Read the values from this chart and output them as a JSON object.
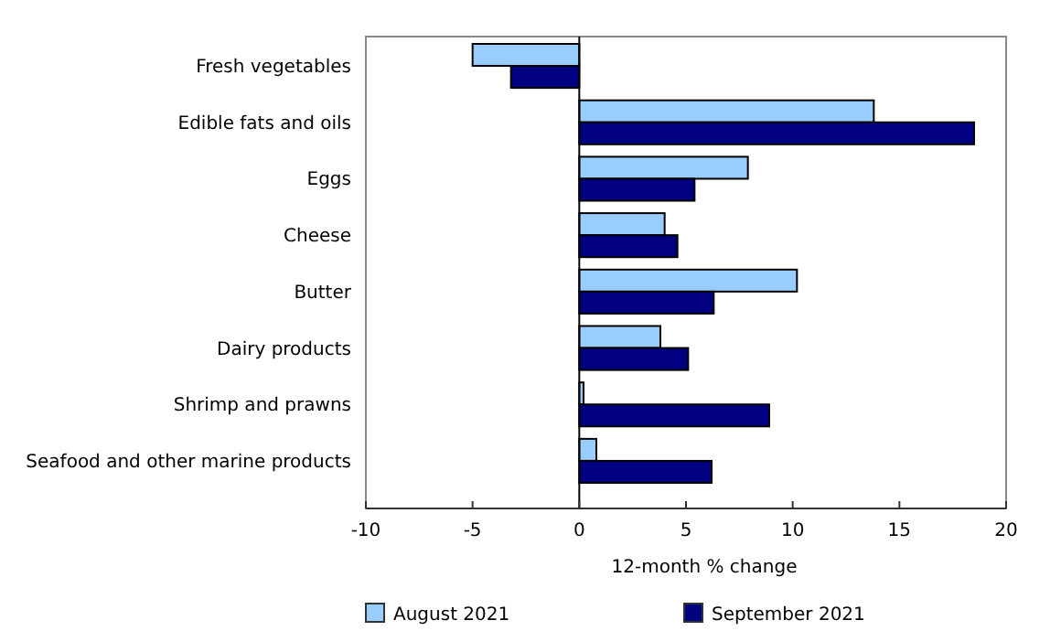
{
  "chart_data": {
    "type": "bar",
    "orientation": "horizontal",
    "xlabel": "12-month % change",
    "categories": [
      "Fresh vegetables",
      "Edible fats and oils",
      "Eggs",
      "Cheese",
      "Butter",
      "Dairy products",
      "Shrimp and prawns",
      "Seafood and other marine products"
    ],
    "series": [
      {
        "name": "August 2021",
        "color": "#99ccff",
        "values": [
          -5.0,
          13.8,
          7.9,
          4.0,
          10.2,
          3.8,
          0.2,
          0.8
        ]
      },
      {
        "name": "September 2021",
        "color": "#000080",
        "values": [
          -3.2,
          18.5,
          5.4,
          4.6,
          6.3,
          5.1,
          8.9,
          6.2
        ]
      }
    ],
    "xlim": [
      -10,
      20
    ],
    "xticks": [
      -10,
      -5,
      0,
      5,
      10,
      15,
      20
    ],
    "legend": "bottom"
  }
}
